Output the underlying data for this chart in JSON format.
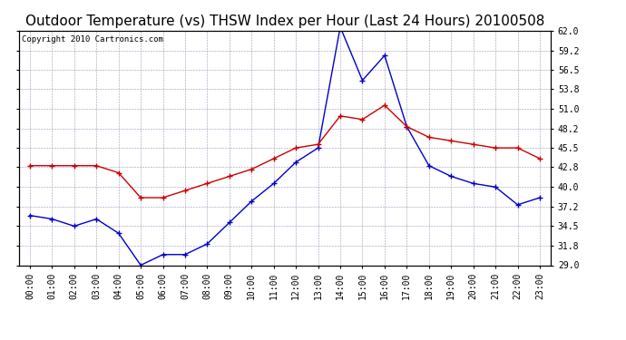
{
  "title": "Outdoor Temperature (vs) THSW Index per Hour (Last 24 Hours) 20100508",
  "copyright": "Copyright 2010 Cartronics.com",
  "hours": [
    "00:00",
    "01:00",
    "02:00",
    "03:00",
    "04:00",
    "05:00",
    "06:00",
    "07:00",
    "08:00",
    "09:00",
    "10:00",
    "11:00",
    "12:00",
    "13:00",
    "14:00",
    "15:00",
    "16:00",
    "17:00",
    "18:00",
    "19:00",
    "20:00",
    "21:00",
    "22:00",
    "23:00"
  ],
  "temp_red": [
    43.0,
    43.0,
    43.0,
    43.0,
    42.0,
    38.5,
    38.5,
    39.5,
    40.5,
    41.5,
    42.5,
    44.0,
    45.5,
    46.0,
    50.0,
    49.5,
    51.5,
    48.5,
    47.0,
    46.5,
    46.0,
    45.5,
    45.5,
    44.0
  ],
  "thsw_blue": [
    36.0,
    35.5,
    34.5,
    35.5,
    33.5,
    29.0,
    30.5,
    30.5,
    32.0,
    35.0,
    38.0,
    40.5,
    43.5,
    45.5,
    62.5,
    55.0,
    58.5,
    48.5,
    43.0,
    41.5,
    40.5,
    40.0,
    37.5,
    38.5
  ],
  "ylim": [
    29.0,
    62.0
  ],
  "yticks": [
    29.0,
    31.8,
    34.5,
    37.2,
    40.0,
    42.8,
    45.5,
    48.2,
    51.0,
    53.8,
    56.5,
    59.2,
    62.0
  ],
  "bg_color": "#ffffff",
  "grid_color": "#9999bb",
  "red_color": "#cc0000",
  "blue_color": "#0000cc",
  "title_fontsize": 11,
  "copyright_fontsize": 6.5,
  "tick_fontsize": 7
}
